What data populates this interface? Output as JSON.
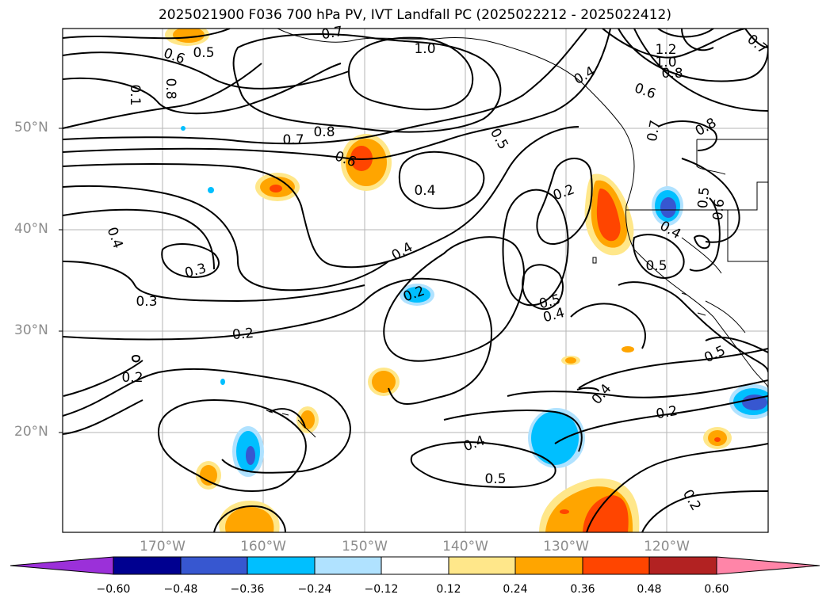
{
  "title": "2025021900 F036 700 hPa PV, IVT Landfall PC (2025022212 - 2025022412)",
  "lat_labels": [
    "50°N",
    "40°N",
    "30°N",
    "20°N"
  ],
  "lon_labels": [
    "170°W",
    "160°W",
    "150°W",
    "140°W",
    "130°W",
    "120°W"
  ],
  "colorbar": {
    "levels": [
      "−0.60",
      "−0.48",
      "−0.36",
      "−0.24",
      "−0.12",
      "0.12",
      "0.24",
      "0.36",
      "0.48",
      "0.60"
    ],
    "colors": [
      "#9b30d9",
      "#000090",
      "#3757d0",
      "#00bfff",
      "#b0e2ff",
      "#ffffff",
      "#ffe78a",
      "#ffa500",
      "#ff4500",
      "#b22222",
      "#ff85a8"
    ]
  },
  "contour_labels": [
    "0.5",
    "0.6",
    "0.8",
    "1.0",
    "0.4",
    "1.2",
    "1.0",
    "0.8",
    "0.6",
    "0.7",
    "0.8",
    "0.7",
    "0.8",
    "0.7",
    "0.6",
    "0.5",
    "0.4",
    "0.2",
    "0.5",
    "0.6",
    "0.4",
    "0.5",
    "0.4",
    "0.3",
    "0.3",
    "0.2",
    "0.4",
    "0.5",
    "0.4",
    "0.2",
    "0.2",
    "0.2",
    "0.5",
    "0.4",
    "0.4",
    "0.5",
    "0.2",
    "0.1",
    "0.7"
  ]
}
